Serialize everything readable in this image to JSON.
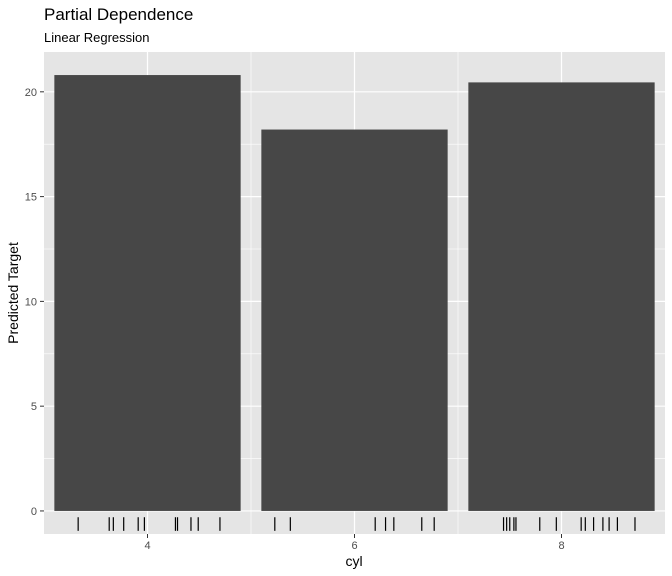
{
  "chart_data": {
    "type": "bar",
    "title": "Partial Dependence",
    "subtitle": "Linear Regression",
    "xlabel": "cyl",
    "ylabel": "Predicted Target",
    "categories": [
      "4",
      "6",
      "8"
    ],
    "values": [
      20.8,
      18.2,
      20.45
    ],
    "ylim": [
      -1.1,
      21.9
    ],
    "yticks": [
      0,
      5,
      10,
      15,
      20
    ],
    "ytick_labels": [
      "0",
      "5",
      "10",
      "15",
      "20"
    ],
    "grid": true,
    "legend": "none",
    "rug": {
      "4": [
        3.33,
        3.63,
        3.67,
        3.77,
        3.91,
        3.97,
        4.27,
        4.29,
        4.42,
        4.49,
        4.7
      ],
      "6": [
        5.23,
        5.38,
        6.2,
        6.3,
        6.38,
        6.65,
        6.77
      ],
      "8": [
        7.44,
        7.47,
        7.5,
        7.54,
        7.56,
        7.79,
        7.95,
        8.19,
        8.23,
        8.31,
        8.4,
        8.46,
        8.54,
        8.71
      ]
    },
    "colors": {
      "bar": "#474747",
      "panel": "#e5e5e5",
      "grid": "#ffffff",
      "rug": "#000000"
    }
  }
}
